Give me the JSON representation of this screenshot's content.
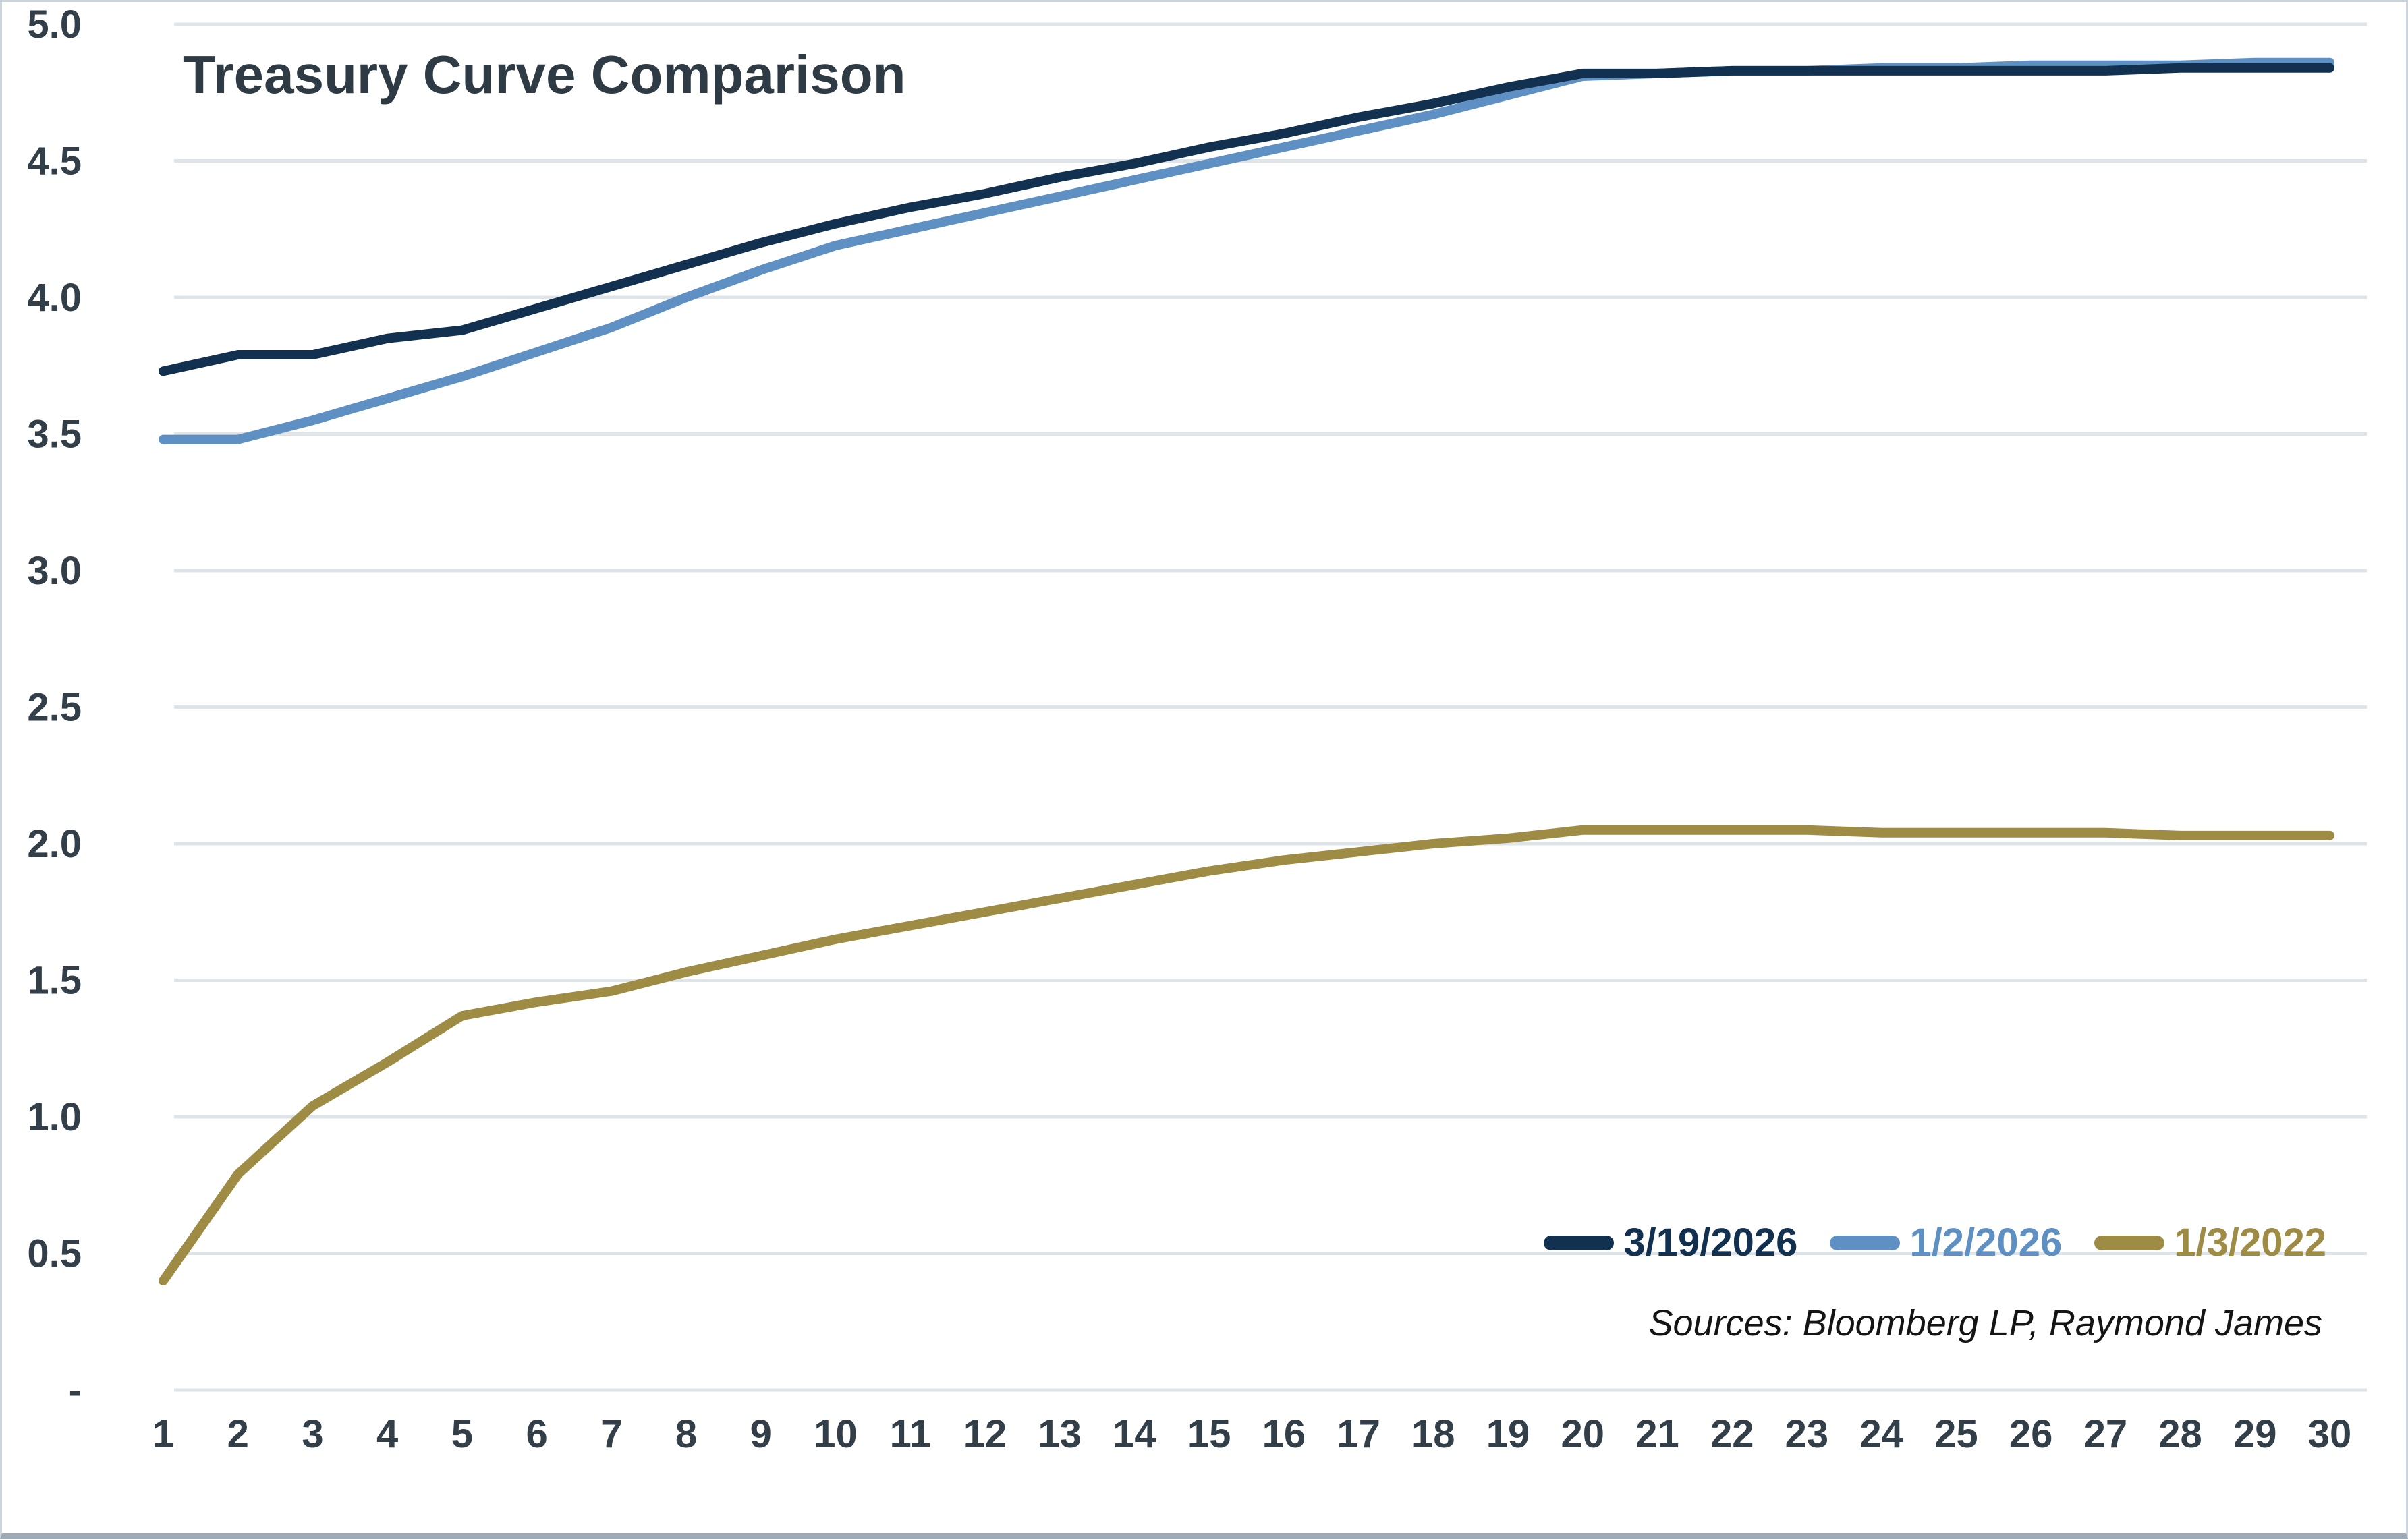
{
  "title": "Treasury Curve Comparison",
  "source_note": "Sources: Bloomberg LP, Raymond James",
  "colors": {
    "background": "#ffffff",
    "gridline": "#dfe4e8",
    "tick_text": "#333f48",
    "title_text": "#2e3a44",
    "source_text": "#141414",
    "series_navy": "#12304f",
    "series_blue": "#5f90c3",
    "series_gold": "#9e8b44"
  },
  "chart_data": {
    "type": "line",
    "title": "Treasury Curve Comparison",
    "xlabel": "",
    "ylabel": "",
    "x": [
      1,
      2,
      3,
      4,
      5,
      6,
      7,
      8,
      9,
      10,
      11,
      12,
      13,
      14,
      15,
      16,
      17,
      18,
      19,
      20,
      21,
      22,
      23,
      24,
      25,
      26,
      27,
      28,
      29,
      30
    ],
    "series": [
      {
        "name": "3/19/2026",
        "color": "#12304f",
        "values": [
          3.73,
          3.79,
          3.79,
          3.85,
          3.88,
          3.96,
          4.04,
          4.12,
          4.2,
          4.27,
          4.33,
          4.38,
          4.44,
          4.49,
          4.55,
          4.6,
          4.66,
          4.71,
          4.77,
          4.82,
          4.82,
          4.83,
          4.83,
          4.83,
          4.83,
          4.83,
          4.83,
          4.84,
          4.84,
          4.84
        ]
      },
      {
        "name": "1/2/2026",
        "color": "#5f90c3",
        "values": [
          3.48,
          3.48,
          3.55,
          3.63,
          3.71,
          3.8,
          3.89,
          4.0,
          4.1,
          4.19,
          4.25,
          4.31,
          4.37,
          4.43,
          4.49,
          4.55,
          4.61,
          4.67,
          4.74,
          4.81,
          4.82,
          4.83,
          4.83,
          4.84,
          4.84,
          4.85,
          4.85,
          4.85,
          4.86,
          4.86
        ]
      },
      {
        "name": "1/3/2022",
        "color": "#9e8b44",
        "values": [
          0.4,
          0.79,
          1.04,
          1.2,
          1.37,
          1.42,
          1.46,
          1.53,
          1.59,
          1.65,
          1.7,
          1.75,
          1.8,
          1.85,
          1.9,
          1.94,
          1.97,
          2.0,
          2.02,
          2.05,
          2.05,
          2.05,
          2.05,
          2.04,
          2.04,
          2.04,
          2.04,
          2.03,
          2.03,
          2.03
        ]
      }
    ],
    "ylim": [
      0,
      5
    ],
    "ytick_values": [
      5.0,
      4.5,
      4.0,
      3.5,
      3.0,
      2.5,
      2.0,
      1.5,
      1.0,
      0.5,
      0.0
    ],
    "ytick_labels": [
      "5.0",
      "4.5",
      "4.0",
      "3.5",
      "3.0",
      "2.5",
      "2.0",
      "1.5",
      "1.0",
      "0.5",
      "-"
    ],
    "grid": true,
    "legend_position": "bottom-right"
  }
}
